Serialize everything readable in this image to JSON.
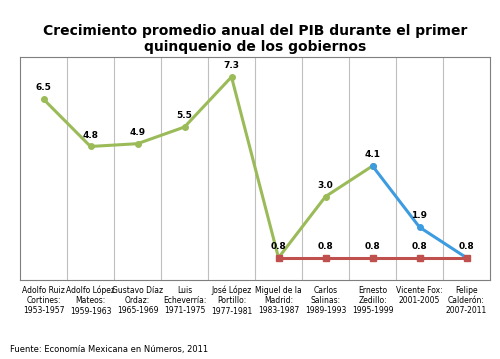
{
  "chart_data": {
    "type": "line",
    "title": "Crecimiento promedio anual del PIB durante el primer quinquenio de los gobiernos",
    "source": "Fuente: Economía Mexicana en Números, 2011",
    "categories": [
      "Adolfo Ruiz Cortines: 1953-1957",
      "Adolfo López Mateos: 1959-1963",
      "Gustavo Díaz Ordaz: 1965-1969",
      "Luis Echeverría: 1971-1975",
      "José López Portillo: 1977-1981",
      "Miguel de la Madrid: 1983-1987",
      "Carlos Salinas: 1989-1993",
      "Ernesto Zedillo: 1995-1999",
      "Vicente Fox: 2001-2005",
      "Felipe Calderón: 2007-2011"
    ],
    "series": [
      {
        "color": "#9bbb59",
        "marker": "circle",
        "line_style": "solid",
        "values": [
          6.5,
          4.8,
          4.9,
          5.5,
          7.3,
          0.8,
          3.0,
          4.1,
          null,
          null
        ]
      },
      {
        "color": "#3d9be0",
        "marker": "circle",
        "line_style": "solid",
        "values": [
          null,
          null,
          null,
          null,
          null,
          null,
          null,
          4.1,
          1.9,
          0.8
        ]
      },
      {
        "color": "#c0504d",
        "marker": "square",
        "line_style": "solid",
        "values": [
          null,
          null,
          null,
          null,
          null,
          0.8,
          0.8,
          0.8,
          0.8,
          0.8
        ]
      }
    ],
    "ylim": [
      0,
      8
    ],
    "data_labels": true,
    "tick_labels": "x"
  }
}
